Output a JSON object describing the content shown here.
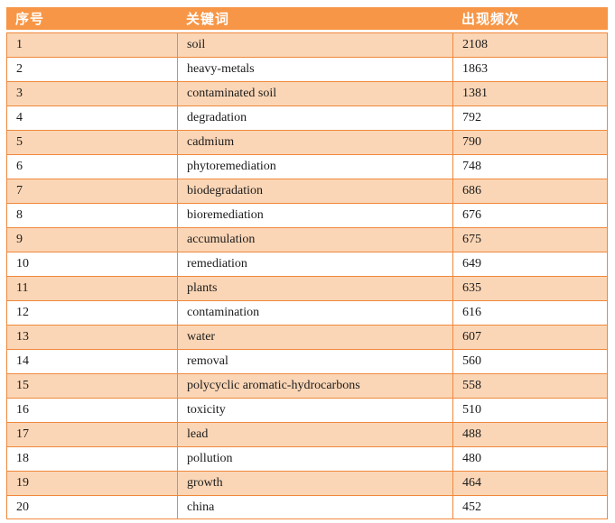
{
  "table": {
    "headers": {
      "no": "序号",
      "keyword": "关键词",
      "frequency": "出现频次"
    },
    "rows": [
      {
        "no": "1",
        "keyword": "soil",
        "frequency": "2108"
      },
      {
        "no": "2",
        "keyword": "heavy-metals",
        "frequency": "1863"
      },
      {
        "no": "3",
        "keyword": "contaminated soil",
        "frequency": "1381"
      },
      {
        "no": "4",
        "keyword": "degradation",
        "frequency": "792"
      },
      {
        "no": "5",
        "keyword": "cadmium",
        "frequency": "790"
      },
      {
        "no": "6",
        "keyword": "phytoremediation",
        "frequency": "748"
      },
      {
        "no": "7",
        "keyword": "biodegradation",
        "frequency": "686"
      },
      {
        "no": "8",
        "keyword": "bioremediation",
        "frequency": "676"
      },
      {
        "no": "9",
        "keyword": "accumulation",
        "frequency": "675"
      },
      {
        "no": "10",
        "keyword": "remediation",
        "frequency": "649"
      },
      {
        "no": "11",
        "keyword": "plants",
        "frequency": "635"
      },
      {
        "no": "12",
        "keyword": "contamination",
        "frequency": "616"
      },
      {
        "no": "13",
        "keyword": "water",
        "frequency": "607"
      },
      {
        "no": "14",
        "keyword": "removal",
        "frequency": "560"
      },
      {
        "no": "15",
        "keyword": "polycyclic aromatic-hydrocarbons",
        "frequency": "558"
      },
      {
        "no": "16",
        "keyword": "toxicity",
        "frequency": "510"
      },
      {
        "no": "17",
        "keyword": "lead",
        "frequency": "488"
      },
      {
        "no": "18",
        "keyword": "pollution",
        "frequency": "480"
      },
      {
        "no": "19",
        "keyword": "growth",
        "frequency": "464"
      },
      {
        "no": "20",
        "keyword": "china",
        "frequency": "452"
      }
    ]
  },
  "chart_data": {
    "type": "table",
    "title": "",
    "columns": [
      "序号",
      "关键词",
      "出现频次"
    ],
    "categories": [
      "soil",
      "heavy-metals",
      "contaminated soil",
      "degradation",
      "cadmium",
      "phytoremediation",
      "biodegradation",
      "bioremediation",
      "accumulation",
      "remediation",
      "plants",
      "contamination",
      "water",
      "removal",
      "polycyclic aromatic-hydrocarbons",
      "toxicity",
      "lead",
      "pollution",
      "growth",
      "china"
    ],
    "values": [
      2108,
      1863,
      1381,
      792,
      790,
      748,
      686,
      676,
      675,
      649,
      635,
      616,
      607,
      560,
      558,
      510,
      488,
      480,
      464,
      452
    ]
  },
  "colors": {
    "header_bg": "#F79646",
    "band_row_bg": "#FBD6B6",
    "plain_row_bg": "#FFFFFF",
    "border": "#F0883C",
    "header_text": "#FFFFFF",
    "body_text": "#1B1B1B",
    "page_bg": "#FFFFFF"
  }
}
